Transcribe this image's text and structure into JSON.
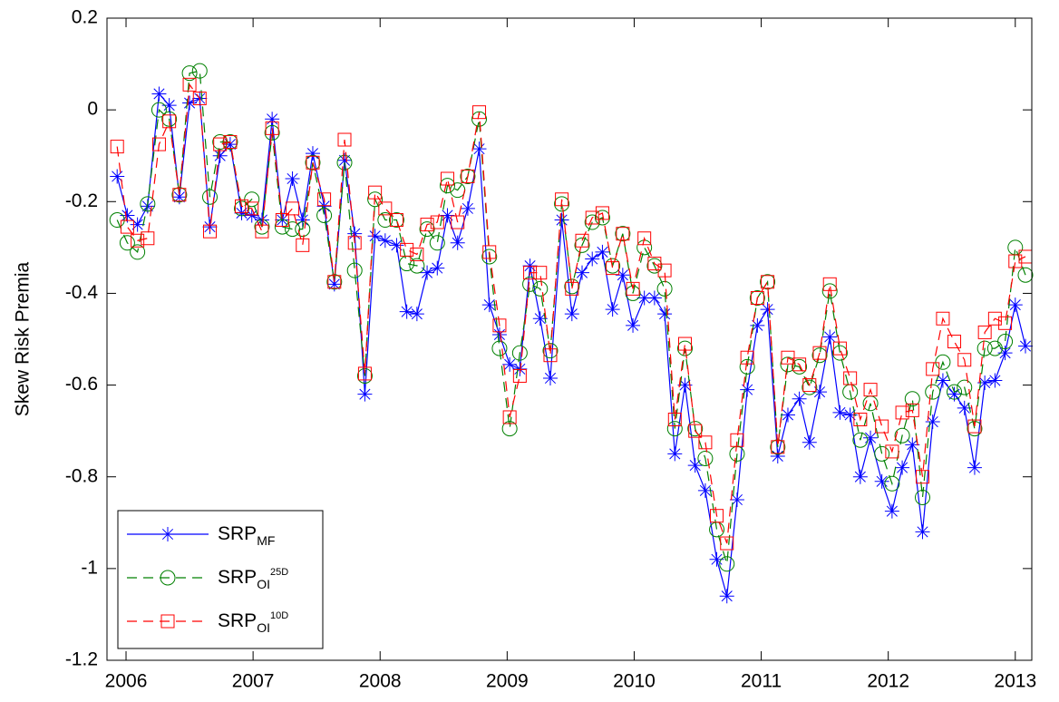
{
  "chart_data": {
    "type": "line",
    "ylabel": "Skew Risk Premia",
    "xlim": [
      2005.85,
      2013.13
    ],
    "xticks": [
      2006,
      2007,
      2008,
      2009,
      2010,
      2011,
      2012,
      2013
    ],
    "ylim": [
      -1.2,
      0.2
    ],
    "yticks": [
      -1.2,
      -1,
      -0.8,
      -0.6,
      -0.4,
      -0.2,
      0,
      0.2
    ],
    "grid": false,
    "legend": "lower left",
    "x": [
      2005.93,
      2006.01,
      2006.09,
      2006.17,
      2006.26,
      2006.34,
      2006.42,
      2006.5,
      2006.58,
      2006.66,
      2006.74,
      2006.82,
      2006.91,
      2006.99,
      2007.07,
      2007.15,
      2007.23,
      2007.31,
      2007.39,
      2007.47,
      2007.56,
      2007.64,
      2007.72,
      2007.8,
      2007.88,
      2007.96,
      2008.04,
      2008.13,
      2008.21,
      2008.29,
      2008.37,
      2008.45,
      2008.53,
      2008.61,
      2008.69,
      2008.78,
      2008.86,
      2008.94,
      2009.02,
      2009.1,
      2009.18,
      2009.26,
      2009.34,
      2009.43,
      2009.51,
      2009.59,
      2009.67,
      2009.75,
      2009.83,
      2009.91,
      2009.99,
      2010.08,
      2010.16,
      2010.24,
      2010.32,
      2010.4,
      2010.48,
      2010.56,
      2010.65,
      2010.73,
      2010.81,
      2010.89,
      2010.97,
      2011.05,
      2011.13,
      2011.21,
      2011.3,
      2011.38,
      2011.46,
      2011.54,
      2011.62,
      2011.7,
      2011.78,
      2011.86,
      2011.95,
      2012.03,
      2012.11,
      2012.19,
      2012.27,
      2012.35,
      2012.43,
      2012.52,
      2012.6,
      2012.68,
      2012.76,
      2012.84,
      2012.92,
      2013.0,
      2013.08
    ],
    "series": [
      {
        "name": "SRP",
        "name_sub": "MF",
        "color": "#0000ff",
        "dash": false,
        "marker": "star",
        "values": [
          -0.145,
          -0.23,
          -0.25,
          -0.21,
          0.035,
          0.01,
          -0.19,
          0.015,
          0.025,
          -0.255,
          -0.1,
          -0.075,
          -0.225,
          -0.23,
          -0.24,
          -0.02,
          -0.24,
          -0.15,
          -0.24,
          -0.095,
          -0.21,
          -0.38,
          -0.11,
          -0.27,
          -0.62,
          -0.275,
          -0.285,
          -0.295,
          -0.44,
          -0.445,
          -0.355,
          -0.345,
          -0.23,
          -0.29,
          -0.215,
          -0.085,
          -0.425,
          -0.49,
          -0.555,
          -0.565,
          -0.34,
          -0.455,
          -0.585,
          -0.24,
          -0.445,
          -0.355,
          -0.325,
          -0.31,
          -0.435,
          -0.36,
          -0.47,
          -0.41,
          -0.41,
          -0.445,
          -0.75,
          -0.6,
          -0.775,
          -0.83,
          -0.98,
          -1.06,
          -0.85,
          -0.61,
          -0.47,
          -0.435,
          -0.755,
          -0.665,
          -0.63,
          -0.725,
          -0.615,
          -0.495,
          -0.66,
          -0.665,
          -0.8,
          -0.715,
          -0.81,
          -0.875,
          -0.78,
          -0.73,
          -0.92,
          -0.68,
          -0.59,
          -0.62,
          -0.65,
          -0.78,
          -0.595,
          -0.59,
          -0.53,
          -0.425,
          -0.515
        ]
      },
      {
        "name": "SRP",
        "name_sub": "OI",
        "name_sup": "25D",
        "color": "#008000",
        "dash": true,
        "marker": "circle",
        "values": [
          -0.24,
          -0.29,
          -0.31,
          -0.205,
          0.0,
          -0.02,
          -0.185,
          0.08,
          0.085,
          -0.19,
          -0.07,
          -0.07,
          -0.215,
          -0.195,
          -0.255,
          -0.05,
          -0.255,
          -0.26,
          -0.26,
          -0.115,
          -0.23,
          -0.375,
          -0.115,
          -0.35,
          -0.58,
          -0.195,
          -0.24,
          -0.24,
          -0.335,
          -0.34,
          -0.26,
          -0.29,
          -0.165,
          -0.175,
          -0.145,
          -0.02,
          -0.32,
          -0.52,
          -0.695,
          -0.53,
          -0.38,
          -0.39,
          -0.525,
          -0.205,
          -0.385,
          -0.295,
          -0.245,
          -0.235,
          -0.34,
          -0.27,
          -0.4,
          -0.3,
          -0.34,
          -0.39,
          -0.695,
          -0.52,
          -0.695,
          -0.76,
          -0.915,
          -0.99,
          -0.75,
          -0.56,
          -0.41,
          -0.375,
          -0.735,
          -0.555,
          -0.56,
          -0.605,
          -0.535,
          -0.395,
          -0.53,
          -0.615,
          -0.72,
          -0.64,
          -0.75,
          -0.815,
          -0.71,
          -0.63,
          -0.845,
          -0.615,
          -0.55,
          -0.615,
          -0.605,
          -0.695,
          -0.52,
          -0.52,
          -0.505,
          -0.3,
          -0.36
        ]
      },
      {
        "name": "SRP",
        "name_sub": "OI",
        "name_sup": "10D",
        "color": "#ff0000",
        "dash": true,
        "marker": "square",
        "values": [
          -0.08,
          -0.255,
          -0.285,
          -0.28,
          -0.075,
          -0.025,
          -0.185,
          0.055,
          0.025,
          -0.265,
          -0.075,
          -0.07,
          -0.21,
          -0.215,
          -0.265,
          -0.04,
          -0.24,
          -0.215,
          -0.295,
          -0.115,
          -0.195,
          -0.375,
          -0.065,
          -0.29,
          -0.575,
          -0.18,
          -0.215,
          -0.24,
          -0.305,
          -0.315,
          -0.25,
          -0.245,
          -0.15,
          -0.245,
          -0.145,
          -0.005,
          -0.31,
          -0.47,
          -0.67,
          -0.58,
          -0.355,
          -0.355,
          -0.535,
          -0.195,
          -0.39,
          -0.285,
          -0.235,
          -0.225,
          -0.345,
          -0.27,
          -0.39,
          -0.28,
          -0.335,
          -0.35,
          -0.675,
          -0.51,
          -0.7,
          -0.725,
          -0.885,
          -0.945,
          -0.72,
          -0.54,
          -0.41,
          -0.375,
          -0.735,
          -0.54,
          -0.555,
          -0.6,
          -0.53,
          -0.38,
          -0.52,
          -0.585,
          -0.675,
          -0.61,
          -0.69,
          -0.745,
          -0.66,
          -0.655,
          -0.8,
          -0.565,
          -0.455,
          -0.505,
          -0.545,
          -0.69,
          -0.485,
          -0.455,
          -0.465,
          -0.33,
          -0.32
        ]
      }
    ]
  }
}
